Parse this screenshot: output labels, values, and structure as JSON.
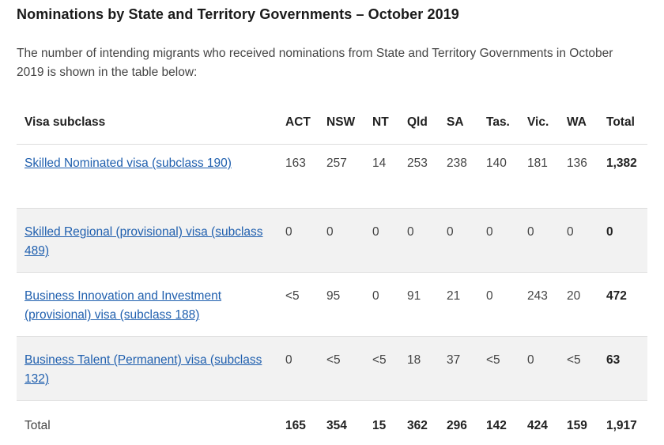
{
  "heading": "Nominations by State and Territory Governments – October 2019",
  "intro": "The number of intending migrants who received nominations from State and Territory Governments in October 2019 is shown in the table below:",
  "table": {
    "headers": [
      "Visa subclass",
      "ACT",
      "NSW",
      "NT",
      "Qld",
      "SA",
      "Tas.",
      "Vic.",
      "WA",
      "Total"
    ],
    "rows": [
      {
        "label": "Skilled Nominated visa (subclass 190)",
        "cells": [
          "163",
          "257",
          "14",
          "253",
          "238",
          "140",
          "181",
          "136"
        ],
        "total": "1,382"
      },
      {
        "label": "Skilled Regional (provisional) visa (subclass 489)",
        "cells": [
          "0",
          "0",
          "0",
          "0",
          "0",
          "0",
          "0",
          "0"
        ],
        "total": "0"
      },
      {
        "label": "Business Innovation and Investment (provisional) visa (subclass 188)",
        "cells": [
          "<5",
          "95",
          "0",
          "91",
          "21",
          "0",
          "243",
          "20"
        ],
        "total": "472"
      },
      {
        "label": "Business Talent (Permanent) visa (subclass 132)",
        "cells": [
          "0",
          "<5",
          "<5",
          "18",
          "37",
          "<5",
          "0",
          "<5"
        ],
        "total": "63"
      }
    ],
    "footer": {
      "label": "Total",
      "cells": [
        "165",
        "354",
        "15",
        "362",
        "296",
        "142",
        "424",
        "159"
      ],
      "total": "1,917"
    }
  },
  "colors": {
    "link": "#1f5fae",
    "row_alt": "#f2f2f2",
    "border": "#dddddd"
  }
}
